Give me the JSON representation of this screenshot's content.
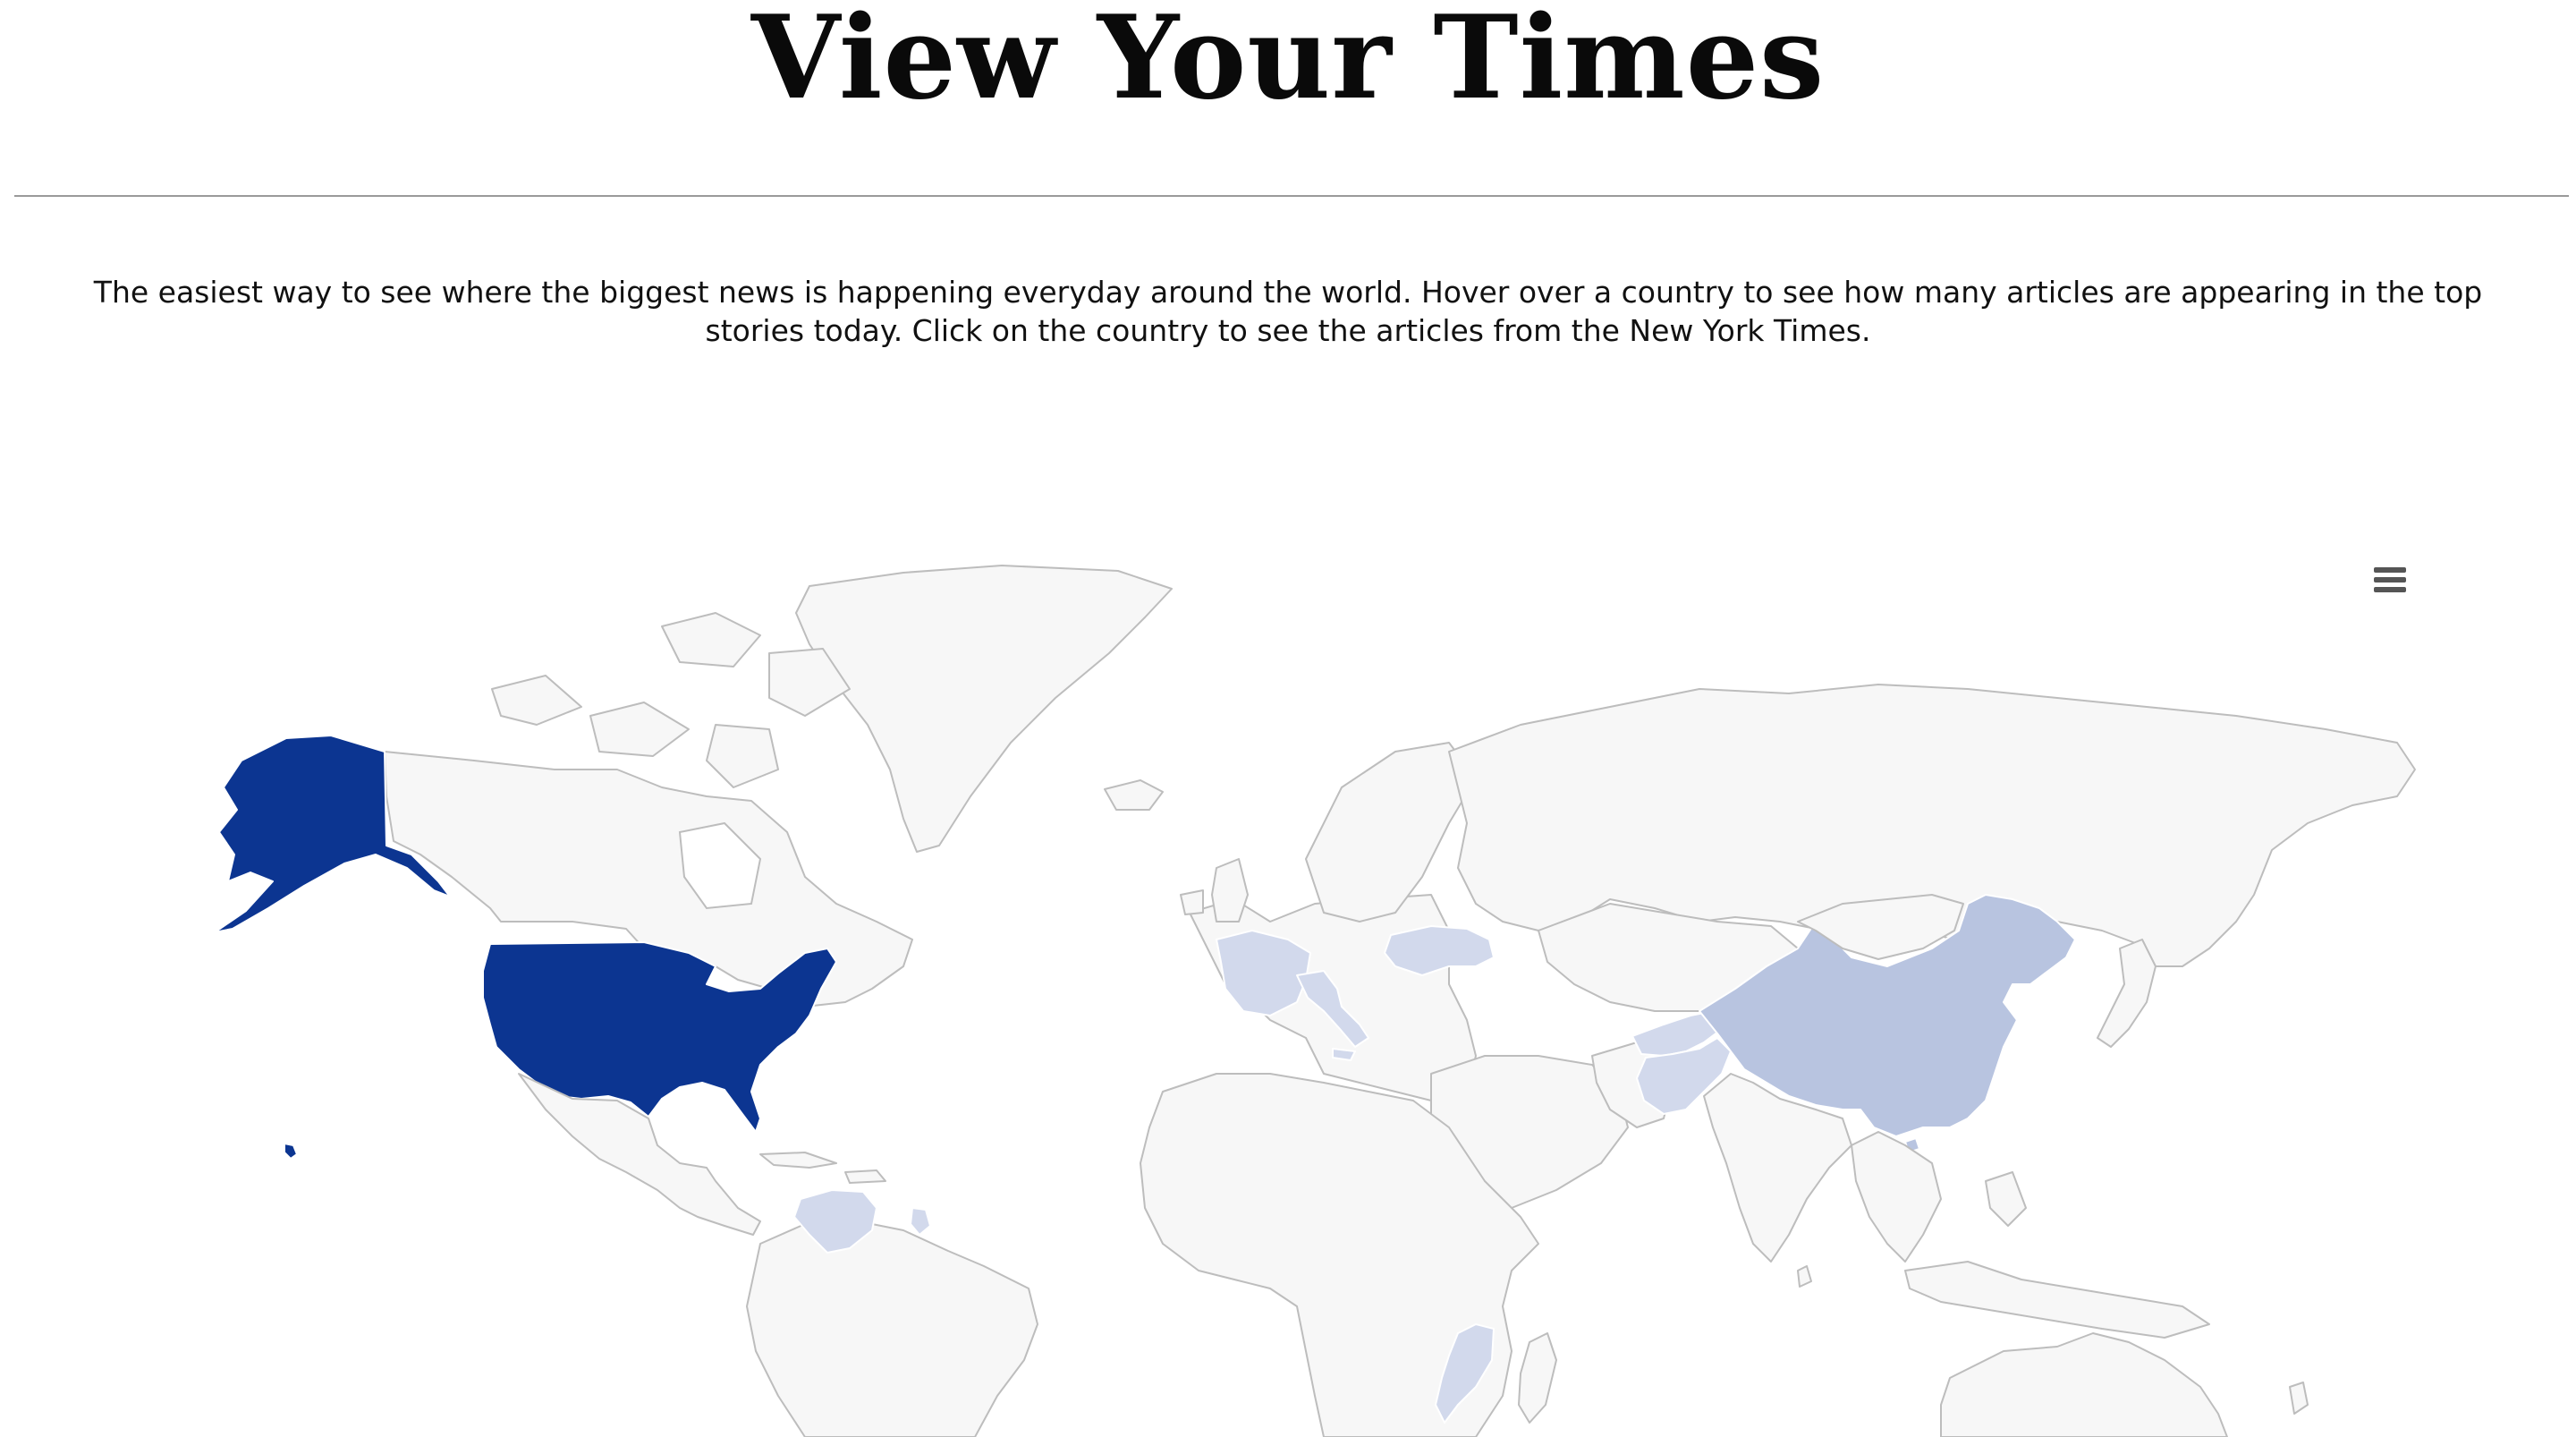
{
  "header": {
    "title": "View Your Times"
  },
  "intro": {
    "text": "The easiest way to see where the biggest news is happening everyday around the world. Hover over a country to see how many articles are appearing in the top stories today. Click on the country to see the articles from the New York Times."
  },
  "map": {
    "menu_icon": "hamburger-menu-icon",
    "colors": {
      "land": "#f7f7f7",
      "border": "#bdbdbd",
      "high": "#0c3591",
      "medium": "#b8c4e0",
      "low": "#d2d9ec"
    },
    "highlighted_countries": [
      {
        "name": "United States",
        "level": "high"
      },
      {
        "name": "China",
        "level": "medium"
      },
      {
        "name": "Afghanistan",
        "level": "low"
      },
      {
        "name": "Pakistan",
        "level": "low"
      },
      {
        "name": "France",
        "level": "low"
      },
      {
        "name": "Italy",
        "level": "low"
      },
      {
        "name": "Ukraine",
        "level": "low"
      },
      {
        "name": "Venezuela",
        "level": "low"
      },
      {
        "name": "Mozambique",
        "level": "low"
      },
      {
        "name": "Guyana",
        "level": "low"
      }
    ]
  }
}
